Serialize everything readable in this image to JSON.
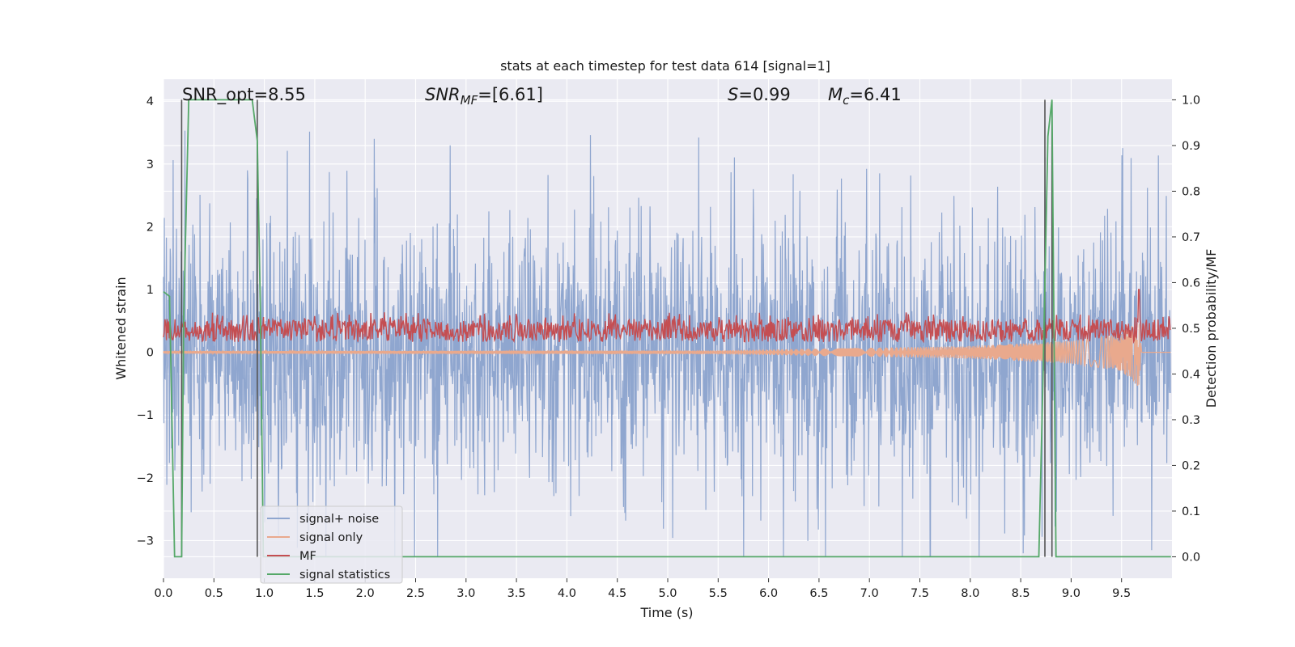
{
  "chart_data": {
    "type": "line",
    "title": "stats at each timestep for test data 614 [signal=1]",
    "xlabel": "Time (s)",
    "ylabel_left": "Whitened strain",
    "ylabel_right": "Detection probability/MF",
    "xlim": [
      0.0,
      10.0
    ],
    "ylim_left": [
      -3.6,
      4.35
    ],
    "ylim_right": [
      -0.047,
      1.045
    ],
    "x_ticks": [
      "0.0",
      "0.5",
      "1.0",
      "1.5",
      "2.0",
      "2.5",
      "3.0",
      "3.5",
      "4.0",
      "4.5",
      "5.0",
      "5.5",
      "6.0",
      "6.5",
      "7.0",
      "7.5",
      "8.0",
      "8.5",
      "9.0",
      "9.5"
    ],
    "y_ticks_left": [
      "−3",
      "−2",
      "−1",
      "0",
      "1",
      "2",
      "3",
      "4"
    ],
    "y_ticks_right": [
      "0.0",
      "0.1",
      "0.2",
      "0.3",
      "0.4",
      "0.5",
      "0.6",
      "0.7",
      "0.8",
      "0.9",
      "1.0"
    ],
    "grid": true,
    "background_color": "#eaeaf2",
    "annotations": {
      "snr_opt": "SNR_opt=8.55",
      "snr_mf_base": "SNR",
      "snr_mf_sub": "MF",
      "snr_mf_value": "=[6.61]",
      "s_letter": "S",
      "s_value": "=0.99",
      "mc_letter": "M",
      "mc_sub": "c",
      "mc_value": "=6.41"
    },
    "vertical_markers": [
      0.18,
      0.93,
      8.74,
      8.81
    ],
    "series": [
      {
        "name": "signal+ noise",
        "color": "#8fa6cf",
        "axis": "left",
        "description_values": "noise band roughly ±1.5 with spikes to about +4 and -3"
      },
      {
        "name": "signal only",
        "color": "#e9a98d",
        "axis": "left",
        "chirp_amplitude": {
          "x": [
            0.0,
            5.5,
            8.0,
            9.0,
            9.5,
            9.67,
            9.7
          ],
          "amp": [
            0.02,
            0.03,
            0.1,
            0.18,
            0.3,
            0.55,
            0.0
          ]
        }
      },
      {
        "name": "MF",
        "color": "#c44e52",
        "axis": "right",
        "band": [
          0.47,
          0.52
        ],
        "spike": {
          "x": 9.67,
          "y": 0.585
        }
      },
      {
        "name": "signal statistics",
        "color": "#55a868",
        "axis": "right",
        "x": [
          0.0,
          0.06,
          0.11,
          0.18,
          0.2,
          0.25,
          0.3,
          0.88,
          0.93,
          0.96,
          0.99,
          1.0,
          8.68,
          8.72,
          8.77,
          8.81,
          8.85,
          9.99
        ],
        "y": [
          0.58,
          0.57,
          0.0,
          0.0,
          0.52,
          1.0,
          1.0,
          1.0,
          0.91,
          0.55,
          0.0,
          0.0,
          0.0,
          0.38,
          0.92,
          1.0,
          0.0,
          0.0
        ]
      }
    ],
    "legend": {
      "placement": "lower-left",
      "entries": [
        "signal+ noise",
        "signal only",
        "MF",
        "signal statistics"
      ]
    }
  }
}
